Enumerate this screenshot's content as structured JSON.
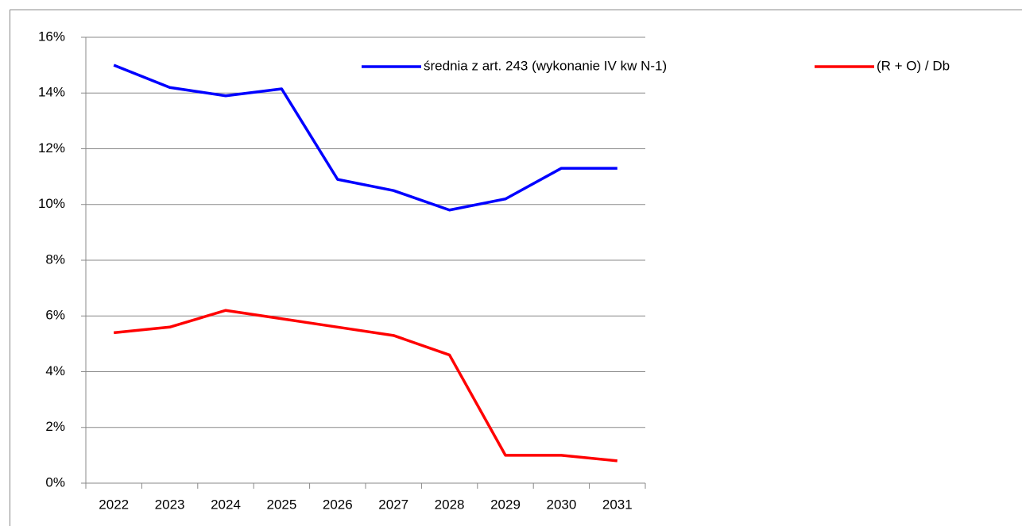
{
  "chart_data": {
    "type": "line",
    "categories": [
      "2022",
      "2023",
      "2024",
      "2025",
      "2026",
      "2027",
      "2028",
      "2029",
      "2030",
      "2031"
    ],
    "series": [
      {
        "name": "średnia z art. 243 (wykonanie IV kw N-1)",
        "color": "#0000ff",
        "values": [
          15.0,
          14.2,
          13.9,
          14.15,
          10.9,
          10.5,
          9.8,
          10.2,
          11.3,
          11.3
        ]
      },
      {
        "name": "(R + O) / Db",
        "color": "#ff0000",
        "values": [
          5.4,
          5.6,
          6.2,
          5.9,
          5.6,
          5.3,
          4.6,
          1.0,
          1.0,
          0.8
        ]
      }
    ],
    "ylim": [
      0,
      16
    ],
    "yticks": [
      {
        "value": 0,
        "label": "0%"
      },
      {
        "value": 2,
        "label": "2%"
      },
      {
        "value": 4,
        "label": "4%"
      },
      {
        "value": 6,
        "label": "6%"
      },
      {
        "value": 8,
        "label": "8%"
      },
      {
        "value": 10,
        "label": "10%"
      },
      {
        "value": 12,
        "label": "12%"
      },
      {
        "value": 14,
        "label": "14%"
      },
      {
        "value": 16,
        "label": "16%"
      }
    ],
    "grid": true,
    "legend": "top-right"
  }
}
